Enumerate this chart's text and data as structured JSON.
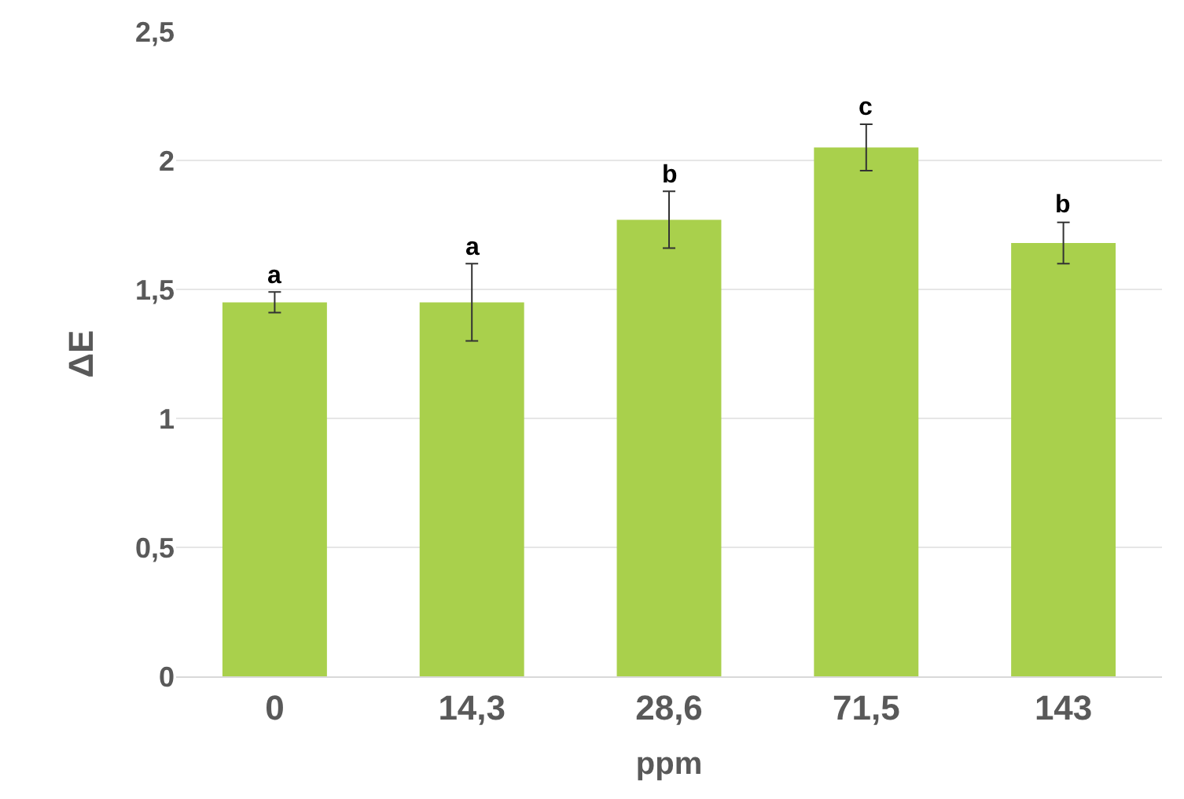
{
  "chart_data": {
    "type": "bar",
    "xlabel": "ppm",
    "ylabel": "ΔE",
    "categories": [
      "0",
      "14,3",
      "28,6",
      "71,5",
      "143"
    ],
    "values": [
      1.45,
      1.45,
      1.77,
      2.05,
      1.68
    ],
    "errors": [
      0.04,
      0.15,
      0.11,
      0.09,
      0.08
    ],
    "color": "#a9d04c",
    "ylim": [
      0,
      2.5
    ],
    "yticks": [
      {
        "value": 0,
        "label": "0"
      },
      {
        "value": 0.5,
        "label": "0,5"
      },
      {
        "value": 1,
        "label": "1"
      },
      {
        "value": 1.5,
        "label": "1,5"
      },
      {
        "value": 2,
        "label": "2"
      },
      {
        "value": 2.5,
        "label": "2,5"
      }
    ],
    "grid": "y",
    "annotations": [
      {
        "text": "a",
        "x": "0",
        "y": 1.49
      },
      {
        "text": "a",
        "x": "14,3",
        "y": 1.6
      },
      {
        "text": "b",
        "x": "28,6",
        "y": 1.88
      },
      {
        "text": "c",
        "x": "71,5",
        "y": 2.14
      },
      {
        "text": "b",
        "x": "143",
        "y": 1.76
      }
    ]
  }
}
